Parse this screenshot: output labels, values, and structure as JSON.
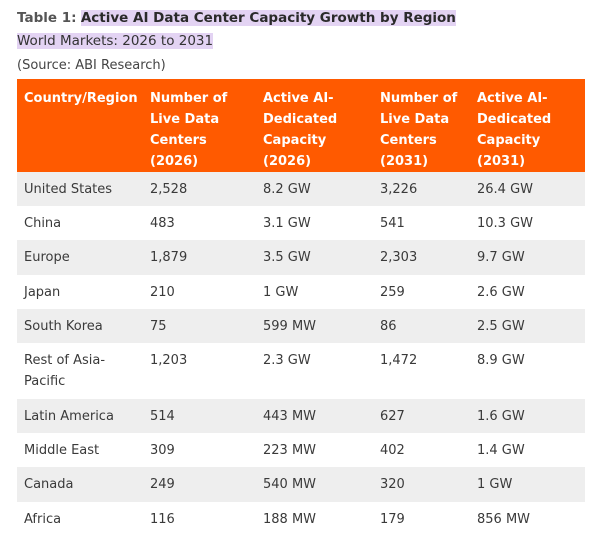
{
  "caption": {
    "prefix": "Table 1:",
    "title": "Active AI Data Center Capacity Growth by Region",
    "subtitle": "World Markets: 2026 to 2031",
    "source": "(Source: ABI Research)"
  },
  "table": {
    "headers": [
      "Country/Region",
      "Number of Live Data Centers (2026)",
      "Active AI-Dedicated Capacity (2026)",
      "Number of Live Data Centers (2031)",
      "Active AI-Dedicated Capacity (2031)"
    ],
    "rows": [
      [
        "United States",
        "2,528",
        "8.2 GW",
        "3,226",
        "26.4 GW"
      ],
      [
        "China",
        "483",
        "3.1 GW",
        "541",
        "10.3 GW"
      ],
      [
        "Europe",
        "1,879",
        "3.5 GW",
        "2,303",
        "9.7 GW"
      ],
      [
        "Japan",
        "210",
        "1 GW",
        "259",
        "2.6 GW"
      ],
      [
        "South Korea",
        "75",
        "599 MW",
        "86",
        "2.5 GW"
      ],
      [
        "Rest of Asia-Pacific",
        "1,203",
        "2.3 GW",
        "1,472",
        "8.9 GW"
      ],
      [
        "Latin America",
        "514",
        "443 MW",
        "627",
        "1.6 GW"
      ],
      [
        "Middle East",
        "309",
        "223 MW",
        "402",
        "1.4 GW"
      ],
      [
        "Canada",
        "249",
        "540 MW",
        "320",
        "1 GW"
      ],
      [
        "Africa",
        "116",
        "188 MW",
        "179",
        "856 MW"
      ]
    ]
  },
  "colors": {
    "header_bg": "#ff5a00",
    "highlight": "#e3d3f3",
    "alt_row": "#eeeeee"
  }
}
